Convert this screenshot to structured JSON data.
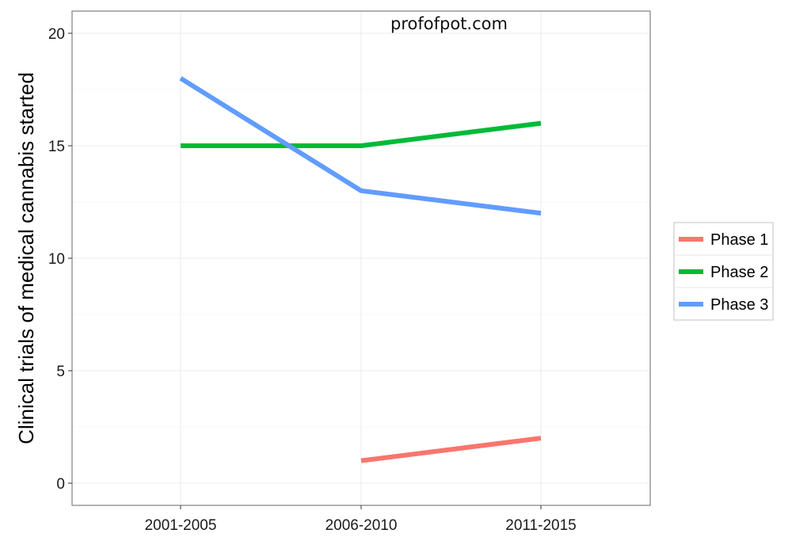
{
  "watermark": "profofpot.com",
  "chart_data": {
    "type": "line",
    "title": "",
    "xlabel": "",
    "ylabel": "Clinical trials of medical cannabis started",
    "categories": [
      "2001-2005",
      "2006-2010",
      "2011-2015"
    ],
    "ylim": [
      -1,
      20.5
    ],
    "yticks": [
      0,
      5,
      10,
      15,
      20
    ],
    "grid": true,
    "legend_position": "right",
    "series": [
      {
        "name": "Phase 1",
        "color": "#F8766D",
        "values": [
          null,
          1,
          2
        ]
      },
      {
        "name": "Phase 2",
        "color": "#00BA38",
        "values": [
          15,
          15,
          16
        ]
      },
      {
        "name": "Phase 3",
        "color": "#619CFF",
        "values": [
          18,
          13,
          12
        ]
      }
    ]
  }
}
